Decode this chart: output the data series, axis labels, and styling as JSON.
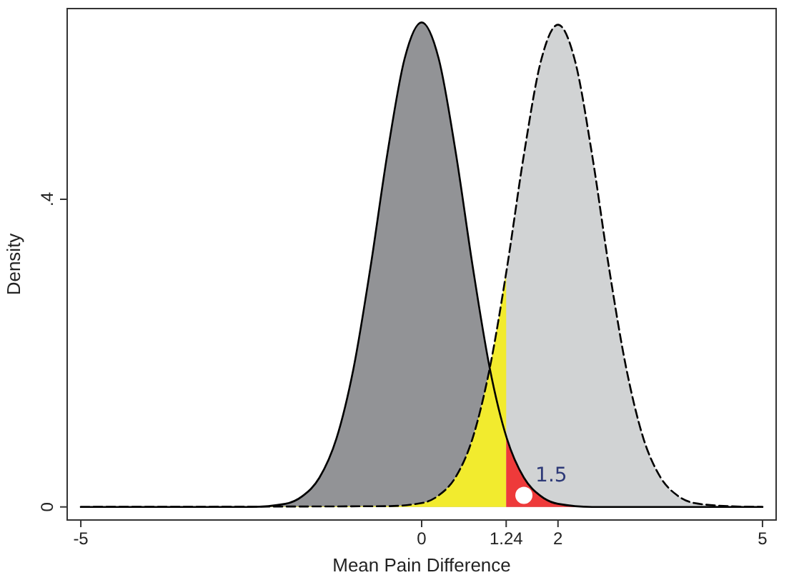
{
  "chart_data": {
    "type": "area",
    "xlabel": "Mean Pain Difference",
    "ylabel": "Density",
    "xlim": [
      -5.2,
      5.2
    ],
    "ylim": [
      -0.017,
      0.648
    ],
    "xticks": [
      -5,
      0,
      1.24,
      2,
      5
    ],
    "yticks": [
      0,
      {
        "value": 0.4,
        "label": ".4"
      }
    ],
    "series": [
      {
        "color": "#929396",
        "line_style": "solid",
        "x": [
          -5,
          -2.5,
          -2,
          -1.75,
          -1.5,
          -1.25,
          -1,
          -0.75,
          -0.5,
          -0.25,
          0,
          0.25,
          0.5,
          0.75,
          1,
          1.25,
          1.5,
          1.75,
          2,
          2.5,
          5
        ],
        "values": [
          0,
          0,
          0.004,
          0.014,
          0.038,
          0.089,
          0.18,
          0.312,
          0.461,
          0.583,
          0.63,
          0.583,
          0.461,
          0.312,
          0.18,
          0.089,
          0.038,
          0.014,
          0.004,
          0,
          0
        ]
      },
      {
        "color": "#d1d3d4",
        "line_style": "dashed",
        "x": [
          -5,
          -0.5,
          0,
          0.25,
          0.5,
          0.75,
          1,
          1.25,
          1.5,
          1.75,
          2,
          2.25,
          2.5,
          2.75,
          3,
          3.25,
          3.5,
          3.75,
          4,
          4.5,
          5
        ],
        "values": [
          0,
          0.001,
          0.005,
          0.015,
          0.039,
          0.09,
          0.181,
          0.31,
          0.458,
          0.58,
          0.627,
          0.58,
          0.458,
          0.31,
          0.181,
          0.09,
          0.039,
          0.015,
          0.005,
          0.001,
          0
        ]
      },
      {
        "color": "#f2eb2e",
        "line_style": "none",
        "x": [
          -5,
          -0.5,
          0,
          0.25,
          0.5,
          0.75,
          1,
          1.24
        ],
        "values": [
          0,
          0.001,
          0.005,
          0.015,
          0.039,
          0.09,
          0.181,
          0.306
        ]
      },
      {
        "color": "#ee3a3a",
        "line_style": "none",
        "x": [
          1.24,
          1.5,
          1.75,
          2,
          2.5,
          5
        ],
        "values": [
          0.092,
          0.038,
          0.014,
          0.004,
          0,
          0
        ]
      },
      {
        "type": "scatter",
        "color": "#ffffff",
        "marker": "circle",
        "x": [
          1.5
        ],
        "values": [
          0.015
        ]
      }
    ],
    "annotations": [
      {
        "text": "1.5",
        "x": 1.5,
        "y": 0.015
      }
    ]
  }
}
